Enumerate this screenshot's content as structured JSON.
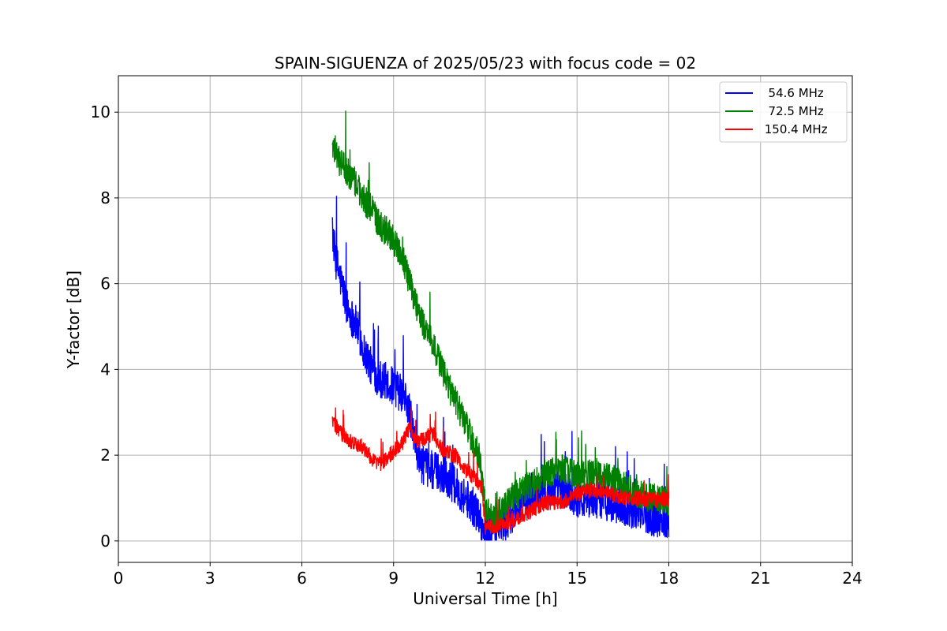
{
  "chart_data": {
    "type": "line",
    "title": "SPAIN-SIGUENZA of 2025/05/23 with focus code = 02",
    "xlabel": "Universal Time [h]",
    "ylabel": "Y-factor [dB]",
    "xlim": [
      0,
      24
    ],
    "ylim": [
      -0.5,
      10.85
    ],
    "xticks": [
      0,
      3,
      6,
      9,
      12,
      15,
      18,
      21,
      24
    ],
    "yticks": [
      0,
      2,
      4,
      6,
      8,
      10
    ],
    "grid": true,
    "legend_position": "top-right",
    "series": [
      {
        "name": "  54.6 MHz",
        "color": "#0000ff",
        "noise": 0.45,
        "x": [
          7.0,
          7.1,
          7.3,
          7.5,
          7.8,
          8.0,
          8.3,
          8.5,
          8.8,
          9.0,
          9.3,
          9.5,
          9.7,
          9.9,
          10.1,
          10.5,
          11.0,
          11.5,
          11.8,
          12.0,
          12.3,
          12.7,
          13.0,
          13.5,
          14.0,
          14.5,
          15.0,
          15.5,
          16.0,
          16.5,
          17.0,
          17.5,
          18.0
        ],
        "y": [
          7.2,
          6.6,
          6.0,
          5.4,
          5.0,
          4.5,
          4.0,
          3.8,
          3.7,
          3.6,
          3.4,
          3.1,
          2.3,
          1.8,
          1.7,
          1.6,
          1.3,
          0.9,
          0.6,
          0.1,
          0.3,
          0.4,
          0.8,
          1.0,
          1.2,
          1.2,
          1.0,
          1.0,
          0.9,
          0.8,
          0.7,
          0.55,
          0.5
        ]
      },
      {
        "name": "  72.5 MHz",
        "color": "#008000",
        "noise": 0.35,
        "x": [
          7.0,
          7.2,
          7.5,
          7.8,
          8.0,
          8.3,
          8.5,
          8.8,
          9.0,
          9.3,
          9.5,
          9.7,
          10.0,
          10.3,
          10.5,
          10.8,
          11.0,
          11.3,
          11.5,
          11.8,
          12.0,
          12.3,
          12.5,
          13.0,
          13.5,
          14.0,
          14.5,
          15.0,
          15.5,
          16.0,
          16.5,
          17.0,
          17.5,
          18.0
        ],
        "y": [
          9.3,
          8.9,
          8.6,
          8.3,
          8.0,
          7.7,
          7.4,
          7.2,
          7.0,
          6.6,
          6.1,
          5.6,
          5.0,
          4.6,
          4.2,
          3.6,
          3.3,
          2.8,
          2.5,
          2.0,
          0.7,
          0.5,
          0.7,
          1.1,
          1.3,
          1.6,
          1.7,
          1.5,
          1.6,
          1.5,
          1.3,
          1.1,
          1.0,
          0.9
        ]
      },
      {
        "name": " 150.4 MHz",
        "color": "#ff0000",
        "noise": 0.18,
        "x": [
          7.0,
          7.3,
          7.6,
          8.0,
          8.3,
          8.6,
          9.0,
          9.3,
          9.5,
          9.8,
          10.0,
          10.3,
          10.6,
          11.0,
          11.3,
          11.6,
          11.9,
          12.0,
          12.3,
          12.6,
          13.0,
          13.5,
          14.0,
          14.5,
          15.0,
          15.5,
          16.0,
          16.5,
          17.0,
          17.5,
          18.0
        ],
        "y": [
          2.8,
          2.5,
          2.3,
          2.2,
          1.9,
          1.8,
          2.1,
          2.3,
          2.6,
          2.3,
          2.4,
          2.5,
          2.1,
          2.0,
          1.7,
          1.5,
          1.2,
          0.3,
          0.35,
          0.4,
          0.5,
          0.7,
          0.9,
          0.9,
          1.1,
          1.2,
          1.1,
          1.0,
          1.0,
          0.95,
          0.95
        ]
      }
    ]
  }
}
